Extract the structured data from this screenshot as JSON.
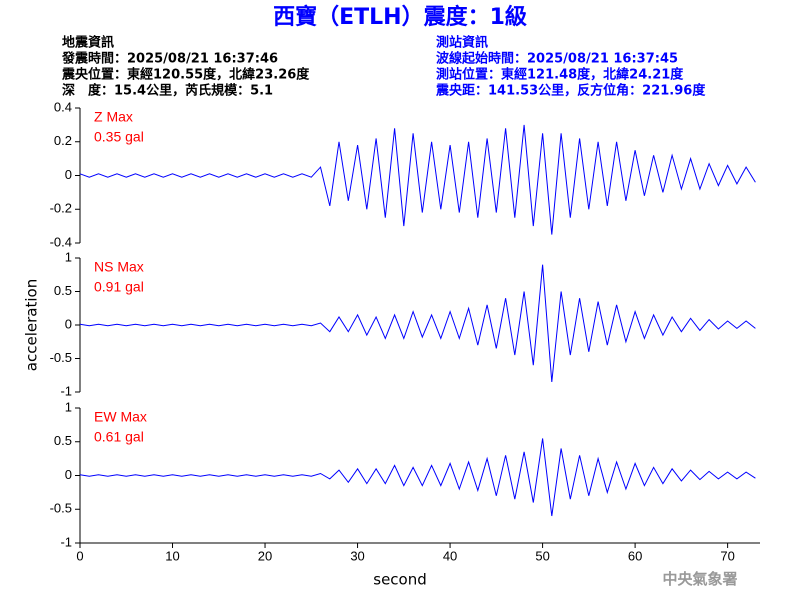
{
  "header": {
    "title": "西寶（ETLH）震度：1級",
    "left": [
      "地震資訊",
      "發震時間：2025/08/21 16:37:46",
      "震央位置：東經120.55度，北緯23.26度",
      "深　度：15.4公里，芮氏規模：5.1"
    ],
    "right": [
      "測站資訊",
      "波線起始時間：2025/08/21 16:37:45",
      "測站位置：東經121.48度，北緯24.21度",
      "震央距：141.53公里，反方位角：221.96度"
    ]
  },
  "footer": "中央氣象署",
  "chart_data": [
    {
      "type": "line",
      "annotations": [
        "Z Max",
        "0.35 gal"
      ],
      "color": "#0000ff",
      "xlim": [
        0,
        73.5
      ],
      "ylim": [
        -0.4,
        0.4
      ],
      "yticks": [
        -0.4,
        -0.2,
        0,
        0.2,
        0.4
      ],
      "x": [
        0,
        1,
        2,
        3,
        4,
        5,
        6,
        7,
        8,
        9,
        10,
        11,
        12,
        13,
        14,
        15,
        16,
        17,
        18,
        19,
        20,
        21,
        22,
        23,
        24,
        25,
        26,
        27,
        28,
        29,
        30,
        31,
        32,
        33,
        34,
        35,
        36,
        37,
        38,
        39,
        40,
        41,
        42,
        43,
        44,
        45,
        46,
        47,
        48,
        49,
        50,
        51,
        52,
        53,
        54,
        55,
        56,
        57,
        58,
        59,
        60,
        61,
        62,
        63,
        64,
        65,
        66,
        67,
        68,
        69,
        70,
        71,
        72,
        73
      ],
      "values": [
        0.01,
        -0.01,
        0.01,
        -0.01,
        0.01,
        -0.01,
        0.01,
        -0.01,
        0.01,
        -0.01,
        0.01,
        -0.01,
        0.01,
        -0.01,
        0.01,
        -0.01,
        0.01,
        -0.01,
        0.01,
        -0.01,
        0.01,
        -0.01,
        0.01,
        -0.01,
        0.01,
        -0.01,
        0.05,
        -0.18,
        0.2,
        -0.15,
        0.18,
        -0.2,
        0.22,
        -0.25,
        0.28,
        -0.3,
        0.25,
        -0.22,
        0.2,
        -0.2,
        0.18,
        -0.22,
        0.2,
        -0.25,
        0.22,
        -0.22,
        0.28,
        -0.25,
        0.3,
        -0.3,
        0.25,
        -0.35,
        0.25,
        -0.25,
        0.22,
        -0.2,
        0.2,
        -0.18,
        0.2,
        -0.15,
        0.15,
        -0.12,
        0.12,
        -0.1,
        0.12,
        -0.08,
        0.1,
        -0.08,
        0.07,
        -0.06,
        0.06,
        -0.05,
        0.05,
        -0.04
      ]
    },
    {
      "type": "line",
      "annotations": [
        "NS Max",
        "0.91 gal"
      ],
      "y_label": "acceleration",
      "color": "#0000ff",
      "xlim": [
        0,
        73.5
      ],
      "ylim": [
        -1,
        1
      ],
      "yticks": [
        -1,
        -0.5,
        0,
        0.5,
        1
      ],
      "x": [
        0,
        1,
        2,
        3,
        4,
        5,
        6,
        7,
        8,
        9,
        10,
        11,
        12,
        13,
        14,
        15,
        16,
        17,
        18,
        19,
        20,
        21,
        22,
        23,
        24,
        25,
        26,
        27,
        28,
        29,
        30,
        31,
        32,
        33,
        34,
        35,
        36,
        37,
        38,
        39,
        40,
        41,
        42,
        43,
        44,
        45,
        46,
        47,
        48,
        49,
        50,
        51,
        52,
        53,
        54,
        55,
        56,
        57,
        58,
        59,
        60,
        61,
        62,
        63,
        64,
        65,
        66,
        67,
        68,
        69,
        70,
        71,
        72,
        73
      ],
      "values": [
        0.01,
        -0.01,
        0.01,
        -0.01,
        0.01,
        -0.01,
        0.01,
        -0.01,
        0.01,
        -0.01,
        0.01,
        -0.01,
        0.01,
        -0.01,
        0.01,
        -0.01,
        0.01,
        -0.01,
        0.01,
        -0.01,
        0.01,
        -0.01,
        0.01,
        -0.01,
        0.01,
        -0.01,
        0.03,
        -0.1,
        0.12,
        -0.1,
        0.15,
        -0.15,
        0.12,
        -0.2,
        0.15,
        -0.2,
        0.2,
        -0.18,
        0.15,
        -0.2,
        0.2,
        -0.2,
        0.25,
        -0.3,
        0.3,
        -0.35,
        0.4,
        -0.45,
        0.5,
        -0.6,
        0.9,
        -0.85,
        0.5,
        -0.45,
        0.4,
        -0.4,
        0.35,
        -0.3,
        0.3,
        -0.25,
        0.2,
        -0.2,
        0.15,
        -0.15,
        0.12,
        -0.1,
        0.1,
        -0.08,
        0.08,
        -0.06,
        0.06,
        -0.05,
        0.06,
        -0.05
      ]
    },
    {
      "type": "line",
      "annotations": [
        "EW Max",
        "0.61 gal"
      ],
      "x_label": "second",
      "color": "#0000ff",
      "xlim": [
        0,
        73.5
      ],
      "ylim": [
        -1,
        1
      ],
      "yticks": [
        -1,
        -0.5,
        0,
        0.5,
        1
      ],
      "xticks": [
        0,
        10,
        20,
        30,
        40,
        50,
        60,
        70
      ],
      "x": [
        0,
        1,
        2,
        3,
        4,
        5,
        6,
        7,
        8,
        9,
        10,
        11,
        12,
        13,
        14,
        15,
        16,
        17,
        18,
        19,
        20,
        21,
        22,
        23,
        24,
        25,
        26,
        27,
        28,
        29,
        30,
        31,
        32,
        33,
        34,
        35,
        36,
        37,
        38,
        39,
        40,
        41,
        42,
        43,
        44,
        45,
        46,
        47,
        48,
        49,
        50,
        51,
        52,
        53,
        54,
        55,
        56,
        57,
        58,
        59,
        60,
        61,
        62,
        63,
        64,
        65,
        66,
        67,
        68,
        69,
        70,
        71,
        72,
        73
      ],
      "values": [
        0.01,
        -0.01,
        0.01,
        -0.01,
        0.01,
        -0.01,
        0.01,
        -0.01,
        0.01,
        -0.01,
        0.01,
        -0.01,
        0.01,
        -0.01,
        0.01,
        -0.01,
        0.01,
        -0.01,
        0.01,
        -0.01,
        0.01,
        -0.01,
        0.01,
        -0.01,
        0.01,
        -0.01,
        0.03,
        -0.05,
        0.08,
        -0.1,
        0.1,
        -0.12,
        0.1,
        -0.12,
        0.15,
        -0.15,
        0.12,
        -0.15,
        0.15,
        -0.15,
        0.18,
        -0.2,
        0.2,
        -0.22,
        0.25,
        -0.3,
        0.3,
        -0.35,
        0.35,
        -0.4,
        0.55,
        -0.6,
        0.4,
        -0.35,
        0.3,
        -0.3,
        0.25,
        -0.25,
        0.2,
        -0.2,
        0.18,
        -0.15,
        0.12,
        -0.12,
        0.1,
        -0.08,
        0.08,
        -0.06,
        0.06,
        -0.05,
        0.05,
        -0.05,
        0.05,
        -0.04
      ]
    }
  ]
}
